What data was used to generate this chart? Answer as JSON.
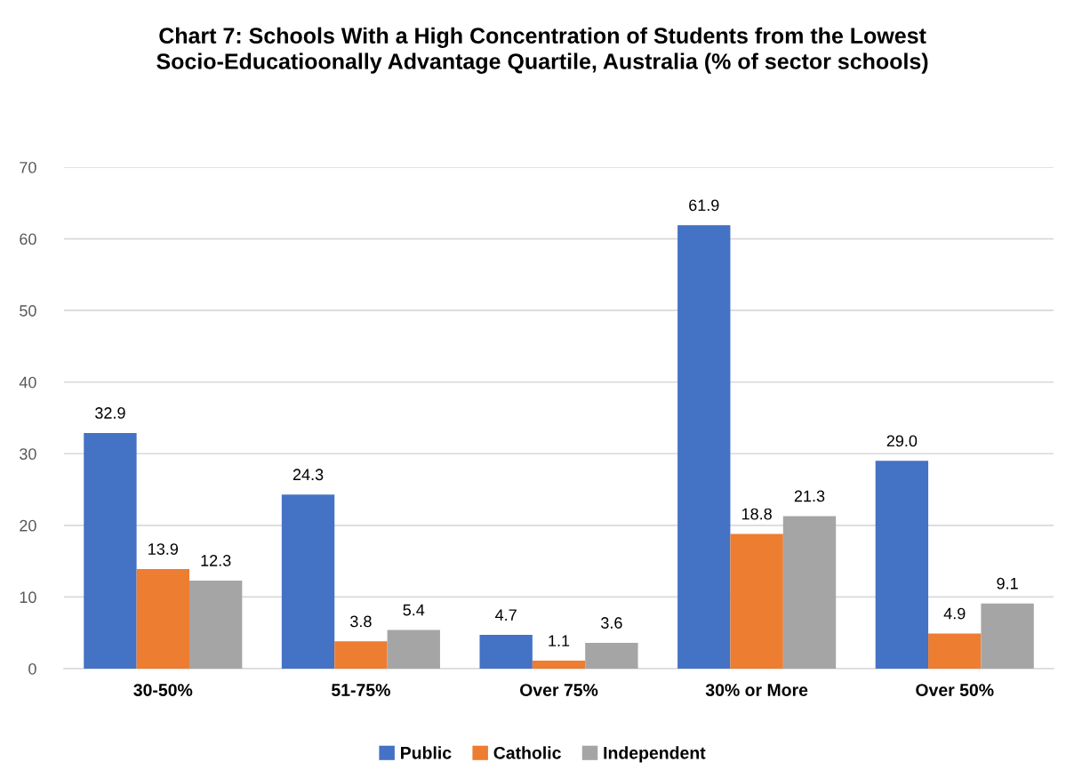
{
  "chart_data": {
    "type": "bar",
    "title": "Chart 7: Schools With a High Concentration of Students from the Lowest Socio-Educatioonally Advantage Quartile, Australia (% of sector schools)",
    "categories": [
      "30-50%",
      "51-75%",
      "Over 75%",
      "30% or More",
      "Over 50%"
    ],
    "series": [
      {
        "name": "Public",
        "color": "#4472c4",
        "values": [
          32.9,
          24.3,
          4.7,
          61.9,
          29.0
        ],
        "value_labels": [
          "32.9",
          "24.3",
          "4.7",
          "61.9",
          "29.0"
        ]
      },
      {
        "name": "Catholic",
        "color": "#ed7d31",
        "values": [
          13.9,
          3.8,
          1.1,
          18.8,
          4.9
        ],
        "value_labels": [
          "13.9",
          "3.8",
          "1.1",
          "18.8",
          "4.9"
        ]
      },
      {
        "name": "Independent",
        "color": "#a5a5a5",
        "values": [
          12.3,
          5.4,
          3.6,
          21.3,
          9.1
        ],
        "value_labels": [
          "12.3",
          "5.4",
          "3.6",
          "21.3",
          "9.1"
        ]
      }
    ],
    "ylim": [
      0,
      70
    ],
    "yticks": [
      0,
      10,
      20,
      30,
      40,
      50,
      60,
      70
    ],
    "grid": "y",
    "legend": "bottom"
  }
}
